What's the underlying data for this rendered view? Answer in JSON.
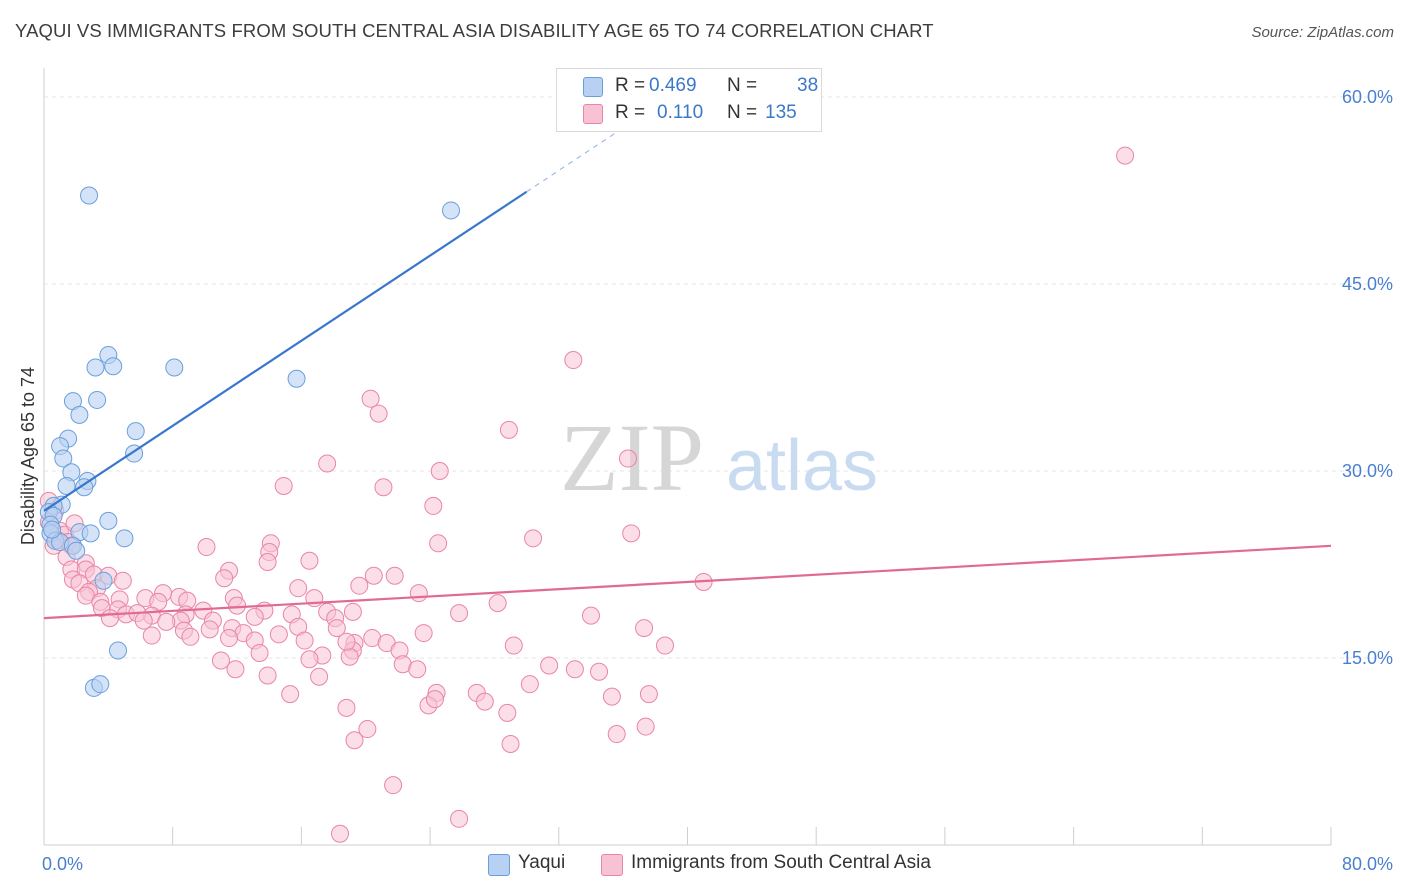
{
  "title": "YAQUI VS IMMIGRANTS FROM SOUTH CENTRAL ASIA DISABILITY AGE 65 TO 74 CORRELATION CHART",
  "source": "Source: ZipAtlas.com",
  "watermark": {
    "zip": "ZIP",
    "atlas": "atlas"
  },
  "legend": {
    "r_label": "R =",
    "n_label": "N =",
    "series": [
      {
        "r": "0.469",
        "n": "38"
      },
      {
        "r": "0.110",
        "n": "135"
      }
    ]
  },
  "bottom_legend": [
    "Yaqui",
    "Immigrants from South Central Asia"
  ],
  "chart_data": {
    "type": "scatter",
    "title": "YAQUI VS IMMIGRANTS FROM SOUTH CENTRAL ASIA DISABILITY AGE 65 TO 74 CORRELATION CHART",
    "xlabel": "",
    "ylabel": "Disability Age 65 to 74",
    "xlim": [
      0,
      80
    ],
    "ylim": [
      0,
      62
    ],
    "x_tick_labels": [
      "0.0%",
      "80.0%"
    ],
    "y_ticks": [
      15,
      30,
      45,
      60
    ],
    "y_tick_labels": [
      "15.0%",
      "30.0%",
      "45.0%",
      "60.0%"
    ],
    "grid": true,
    "colors": {
      "yaqui_fill": "#b8d1f2",
      "yaqui_stroke": "#6a9fdc",
      "yaqui_line": "#3777cc",
      "imm_fill": "#f7c3d4",
      "imm_stroke": "#e985a8",
      "imm_line": "#e16a95",
      "tick_label": "#4a7fd0",
      "grid": "#e6e6e6"
    },
    "series": [
      {
        "name": "Yaqui",
        "trend": {
          "x0": 0.0,
          "y0": 26.8,
          "x1": 30.0,
          "y1": 52.4,
          "dash_to_x": 37.0
        },
        "points": [
          [
            2.8,
            52.1
          ],
          [
            25.3,
            50.9
          ],
          [
            4.0,
            39.3
          ],
          [
            4.3,
            38.4
          ],
          [
            3.2,
            38.3
          ],
          [
            8.1,
            38.3
          ],
          [
            15.7,
            37.4
          ],
          [
            1.8,
            35.6
          ],
          [
            3.3,
            35.7
          ],
          [
            2.2,
            34.5
          ],
          [
            5.7,
            33.2
          ],
          [
            1.5,
            32.6
          ],
          [
            1.0,
            32.0
          ],
          [
            5.6,
            31.4
          ],
          [
            1.2,
            31.0
          ],
          [
            1.7,
            29.9
          ],
          [
            2.7,
            29.2
          ],
          [
            2.5,
            28.7
          ],
          [
            1.4,
            28.8
          ],
          [
            1.1,
            27.3
          ],
          [
            0.6,
            27.2
          ],
          [
            0.3,
            26.7
          ],
          [
            0.6,
            26.4
          ],
          [
            4.0,
            26.0
          ],
          [
            0.4,
            25.7
          ],
          [
            0.4,
            25.0
          ],
          [
            2.2,
            25.1
          ],
          [
            2.9,
            25.0
          ],
          [
            5.0,
            24.6
          ],
          [
            0.7,
            24.4
          ],
          [
            1.0,
            24.3
          ],
          [
            1.8,
            24.0
          ],
          [
            2.0,
            23.6
          ],
          [
            3.7,
            21.2
          ],
          [
            0.5,
            25.3
          ],
          [
            4.6,
            15.6
          ],
          [
            3.1,
            12.6
          ],
          [
            3.5,
            12.9
          ]
        ]
      },
      {
        "name": "Immigrants from South Central Asia",
        "trend": {
          "x0": 0.0,
          "y0": 18.2,
          "x1": 80.0,
          "y1": 24.0
        },
        "points": [
          [
            67.2,
            55.3
          ],
          [
            32.9,
            38.9
          ],
          [
            20.3,
            35.8
          ],
          [
            20.8,
            34.6
          ],
          [
            28.9,
            33.3
          ],
          [
            36.3,
            31.0
          ],
          [
            17.6,
            30.6
          ],
          [
            24.6,
            30.0
          ],
          [
            14.9,
            28.8
          ],
          [
            21.1,
            28.7
          ],
          [
            24.2,
            27.2
          ],
          [
            0.3,
            27.6
          ],
          [
            0.7,
            26.8
          ],
          [
            0.3,
            25.9
          ],
          [
            0.5,
            25.3
          ],
          [
            1.0,
            25.2
          ],
          [
            36.5,
            25.0
          ],
          [
            1.3,
            24.9
          ],
          [
            0.8,
            24.5
          ],
          [
            1.5,
            24.3
          ],
          [
            30.4,
            24.6
          ],
          [
            24.5,
            24.2
          ],
          [
            14.1,
            24.2
          ],
          [
            1.7,
            24.0
          ],
          [
            10.1,
            23.9
          ],
          [
            14.0,
            23.5
          ],
          [
            1.4,
            23.1
          ],
          [
            2.6,
            22.6
          ],
          [
            13.9,
            22.7
          ],
          [
            1.7,
            22.1
          ],
          [
            2.6,
            22.1
          ],
          [
            16.5,
            22.8
          ],
          [
            11.5,
            22.0
          ],
          [
            3.1,
            21.7
          ],
          [
            4.0,
            21.6
          ],
          [
            21.8,
            21.6
          ],
          [
            20.5,
            21.6
          ],
          [
            11.2,
            21.4
          ],
          [
            4.9,
            21.2
          ],
          [
            1.8,
            21.3
          ],
          [
            2.2,
            21.0
          ],
          [
            3.3,
            20.6
          ],
          [
            41.0,
            21.1
          ],
          [
            19.6,
            20.8
          ],
          [
            15.8,
            20.6
          ],
          [
            2.8,
            20.3
          ],
          [
            8.4,
            19.9
          ],
          [
            2.6,
            20.0
          ],
          [
            7.4,
            20.2
          ],
          [
            23.3,
            20.2
          ],
          [
            3.5,
            19.5
          ],
          [
            8.9,
            19.6
          ],
          [
            11.8,
            19.8
          ],
          [
            4.7,
            19.7
          ],
          [
            6.3,
            19.8
          ],
          [
            16.8,
            19.8
          ],
          [
            12.0,
            19.2
          ],
          [
            28.2,
            19.4
          ],
          [
            7.1,
            19.5
          ],
          [
            3.6,
            19.0
          ],
          [
            4.6,
            18.9
          ],
          [
            9.9,
            18.8
          ],
          [
            8.8,
            18.5
          ],
          [
            13.7,
            18.8
          ],
          [
            15.4,
            18.5
          ],
          [
            17.6,
            18.7
          ],
          [
            19.2,
            18.7
          ],
          [
            25.8,
            18.6
          ],
          [
            34.0,
            18.4
          ],
          [
            6.7,
            18.4
          ],
          [
            5.1,
            18.5
          ],
          [
            5.8,
            18.6
          ],
          [
            4.1,
            18.2
          ],
          [
            6.2,
            18.0
          ],
          [
            8.5,
            18.0
          ],
          [
            18.1,
            18.2
          ],
          [
            13.1,
            18.3
          ],
          [
            10.5,
            18.0
          ],
          [
            7.6,
            17.9
          ],
          [
            11.7,
            17.4
          ],
          [
            10.3,
            17.3
          ],
          [
            18.2,
            17.4
          ],
          [
            15.8,
            17.5
          ],
          [
            8.7,
            17.2
          ],
          [
            37.3,
            17.4
          ],
          [
            23.6,
            17.0
          ],
          [
            12.4,
            17.0
          ],
          [
            14.6,
            16.9
          ],
          [
            11.5,
            16.6
          ],
          [
            6.7,
            16.8
          ],
          [
            13.1,
            16.4
          ],
          [
            20.4,
            16.6
          ],
          [
            16.2,
            16.4
          ],
          [
            9.1,
            16.7
          ],
          [
            19.3,
            16.2
          ],
          [
            21.3,
            16.2
          ],
          [
            38.6,
            16.0
          ],
          [
            29.2,
            16.0
          ],
          [
            19.2,
            15.6
          ],
          [
            22.1,
            15.6
          ],
          [
            13.4,
            15.4
          ],
          [
            17.3,
            15.2
          ],
          [
            16.5,
            14.9
          ],
          [
            22.3,
            14.5
          ],
          [
            23.2,
            14.1
          ],
          [
            11.9,
            14.1
          ],
          [
            11.0,
            14.8
          ],
          [
            19.0,
            15.1
          ],
          [
            31.4,
            14.4
          ],
          [
            33.0,
            14.1
          ],
          [
            34.5,
            13.9
          ],
          [
            13.9,
            13.6
          ],
          [
            17.1,
            13.5
          ],
          [
            30.2,
            12.9
          ],
          [
            24.4,
            12.2
          ],
          [
            26.9,
            12.2
          ],
          [
            15.3,
            12.1
          ],
          [
            35.3,
            11.9
          ],
          [
            37.6,
            12.1
          ],
          [
            27.4,
            11.5
          ],
          [
            18.8,
            11.0
          ],
          [
            23.9,
            11.2
          ],
          [
            28.8,
            10.6
          ],
          [
            37.4,
            9.5
          ],
          [
            20.1,
            9.3
          ],
          [
            35.6,
            8.9
          ],
          [
            19.3,
            8.4
          ],
          [
            29.0,
            8.1
          ],
          [
            21.7,
            4.8
          ],
          [
            25.8,
            2.1
          ],
          [
            18.4,
            0.9
          ],
          [
            0.6,
            24.0
          ],
          [
            1.9,
            25.8
          ],
          [
            24.3,
            11.7
          ],
          [
            18.8,
            16.3
          ]
        ]
      }
    ]
  }
}
